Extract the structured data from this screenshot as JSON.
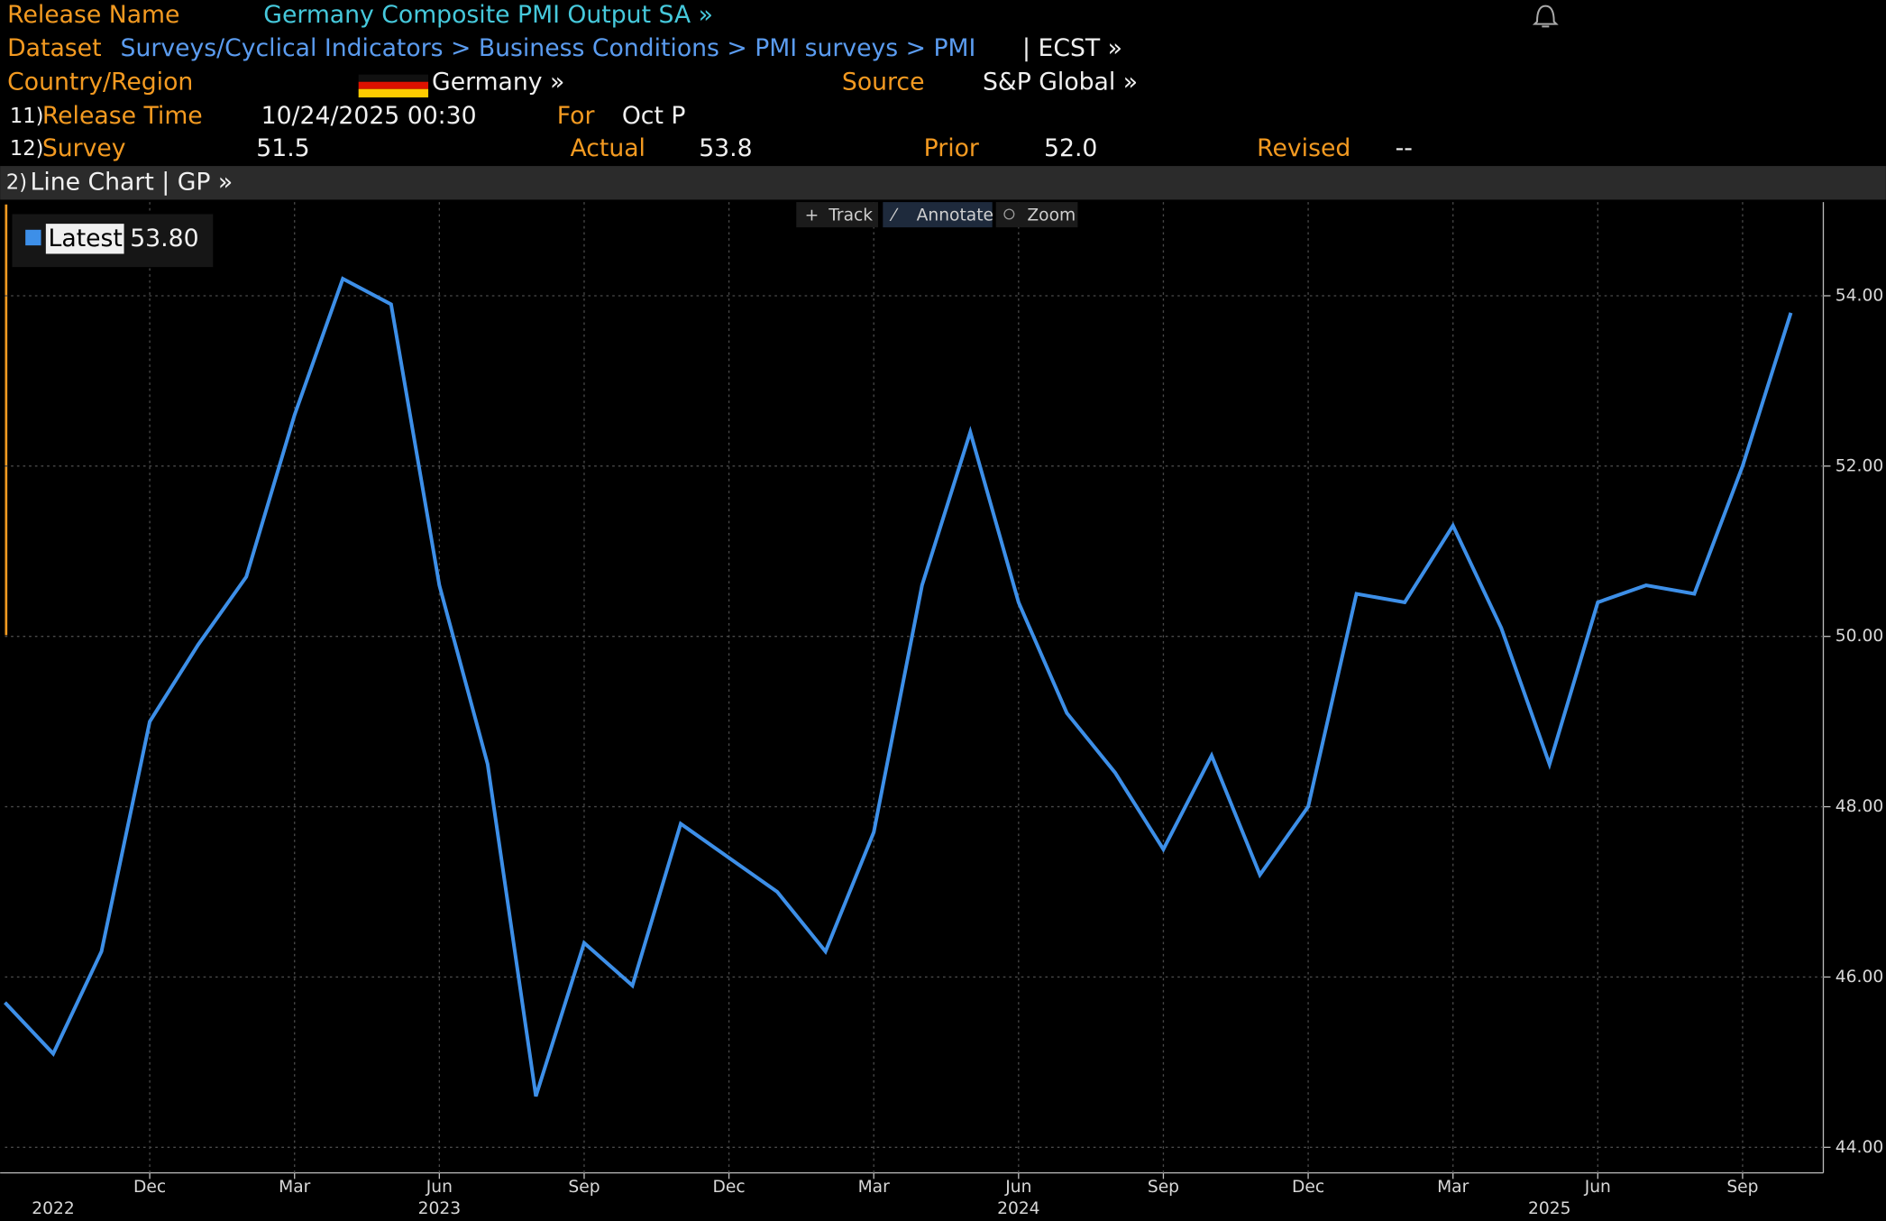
{
  "header": {
    "release_name_label": "Release Name",
    "release_name": "Germany Composite PMI Output SA »",
    "dataset_label": "Dataset",
    "dataset_path": "Surveys/Cyclical Indicators > Business Conditions > PMI surveys > PMI",
    "dataset_suffix": "| ECST »",
    "country_label": "Country/Region",
    "country": "Germany »",
    "source_label": "Source",
    "source": "S&P Global »",
    "row11_num": "11)",
    "release_time_label": "Release Time",
    "release_time": "10/24/2025 00:30",
    "for_label": "For",
    "for": "Oct P",
    "row12_num": "12)",
    "survey_label": "Survey",
    "survey": "51.5",
    "actual_label": "Actual",
    "actual": "53.8",
    "prior_label": "Prior",
    "prior": "52.0",
    "revised_label": "Revised",
    "revised": "--",
    "toolbar_num": "2)",
    "toolbar_title": "Line Chart | GP »",
    "tools": [
      "Track",
      "Annotate",
      "Zoom"
    ]
  },
  "chart_data": {
    "type": "line",
    "x": [
      "2022-09",
      "2022-10",
      "2022-11",
      "2022-12",
      "2023-01",
      "2023-02",
      "2023-03",
      "2023-04",
      "2023-05",
      "2023-06",
      "2023-07",
      "2023-08",
      "2023-09",
      "2023-10",
      "2023-11",
      "2023-12",
      "2024-01",
      "2024-02",
      "2024-03",
      "2024-04",
      "2024-05",
      "2024-06",
      "2024-07",
      "2024-08",
      "2024-09",
      "2024-10",
      "2024-11",
      "2024-12",
      "2025-01",
      "2025-02",
      "2025-03",
      "2025-04",
      "2025-05",
      "2025-06",
      "2025-07",
      "2025-08",
      "2025-09",
      "2025-10"
    ],
    "series": [
      {
        "name": "Latest",
        "color": "#3d8fe8",
        "values": [
          45.7,
          45.1,
          46.3,
          49.0,
          49.9,
          50.7,
          52.6,
          54.2,
          53.9,
          50.6,
          48.5,
          44.6,
          46.4,
          45.9,
          47.8,
          47.4,
          47.0,
          46.3,
          47.7,
          50.6,
          52.4,
          50.4,
          49.1,
          48.4,
          47.5,
          48.6,
          47.2,
          48.0,
          50.5,
          50.4,
          51.3,
          50.1,
          48.5,
          50.4,
          50.6,
          50.5,
          52.0,
          53.8
        ]
      }
    ],
    "latest_label": "53.80",
    "ylim": [
      43.7,
      55.1
    ],
    "yticks": [
      {
        "value": 44,
        "label": "44.00"
      },
      {
        "value": 46,
        "label": "46.00"
      },
      {
        "value": 48,
        "label": "48.00"
      },
      {
        "value": 50,
        "label": "50.00"
      },
      {
        "value": 52,
        "label": "52.00"
      },
      {
        "value": 54,
        "label": "54.00"
      }
    ],
    "xticks": [
      {
        "value": "2022-12",
        "label": "Dec"
      },
      {
        "value": "2023-03",
        "label": "Mar"
      },
      {
        "value": "2023-06",
        "label": "Jun"
      },
      {
        "value": "2023-09",
        "label": "Sep"
      },
      {
        "value": "2023-12",
        "label": "Dec"
      },
      {
        "value": "2024-03",
        "label": "Mar"
      },
      {
        "value": "2024-06",
        "label": "Jun"
      },
      {
        "value": "2024-09",
        "label": "Sep"
      },
      {
        "value": "2024-12",
        "label": "Dec"
      },
      {
        "value": "2025-03",
        "label": "Mar"
      },
      {
        "value": "2025-06",
        "label": "Jun"
      },
      {
        "value": "2025-09",
        "label": "Sep"
      }
    ],
    "year_labels": [
      {
        "value": "2022-10",
        "label": "2022"
      },
      {
        "value": "2023-06",
        "label": "2023"
      },
      {
        "value": "2024-06",
        "label": "2024"
      },
      {
        "value": "2025-05",
        "label": "2025"
      }
    ],
    "grid": true
  }
}
